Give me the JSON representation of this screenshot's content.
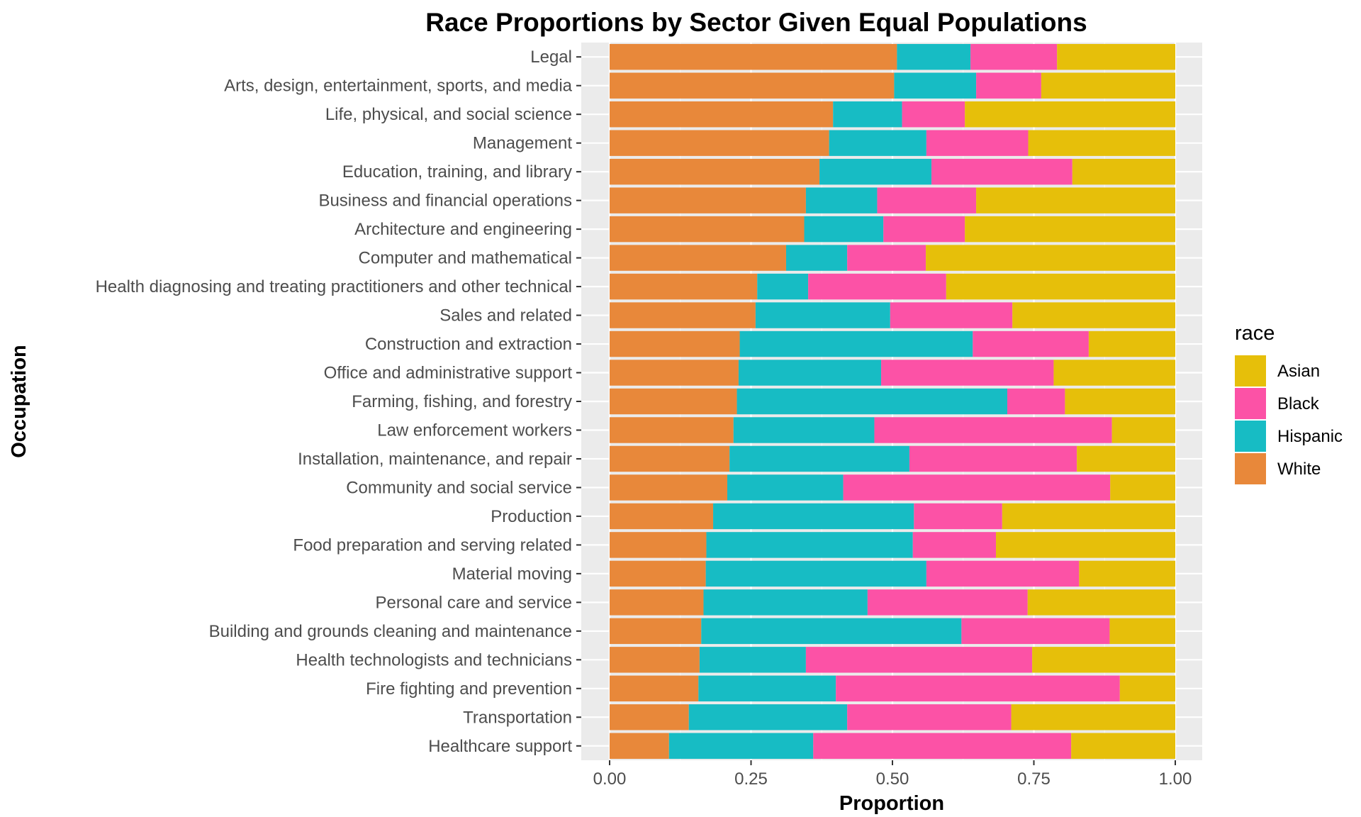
{
  "chart_data": {
    "type": "bar",
    "orientation": "horizontal",
    "stacked": true,
    "title": "Race Proportions by Sector Given Equal Populations",
    "xlabel": "Proportion",
    "ylabel": "Occupation",
    "xlim": [
      0,
      1
    ],
    "x_ticks": [
      "0.00",
      "0.25",
      "0.50",
      "0.75",
      "1.00"
    ],
    "x_tick_values": [
      0,
      0.25,
      0.5,
      0.75,
      1.0
    ],
    "grid": true,
    "legend_title": "race",
    "legend_position": "right",
    "categories": [
      "Legal",
      "Arts, design, entertainment, sports, and media",
      "Life, physical, and social science",
      "Management",
      "Education, training, and library",
      "Business and financial operations",
      "Architecture and engineering",
      "Computer and mathematical",
      "Health diagnosing and treating practitioners and other technical",
      "Sales and related",
      "Construction and extraction",
      "Office and administrative support",
      "Farming, fishing, and forestry",
      "Law enforcement workers",
      "Installation, maintenance, and repair",
      "Community and social service",
      "Production",
      "Food preparation and serving related",
      "Material moving",
      "Personal care and service",
      "Building and grounds cleaning and maintenance",
      "Health technologists and technicians",
      "Fire fighting and prevention",
      "Transportation",
      "Healthcare support"
    ],
    "series": [
      {
        "name": "White",
        "color": "#E8883A",
        "values": [
          0.508,
          0.503,
          0.395,
          0.388,
          0.371,
          0.347,
          0.344,
          0.312,
          0.261,
          0.258,
          0.23,
          0.228,
          0.225,
          0.219,
          0.212,
          0.208,
          0.183,
          0.171,
          0.17,
          0.166,
          0.162,
          0.159,
          0.157,
          0.14,
          0.105
        ]
      },
      {
        "name": "Hispanic",
        "color": "#17BCC4",
        "values": [
          0.13,
          0.145,
          0.122,
          0.172,
          0.198,
          0.126,
          0.14,
          0.108,
          0.09,
          0.238,
          0.412,
          0.252,
          0.478,
          0.249,
          0.318,
          0.205,
          0.355,
          0.365,
          0.39,
          0.29,
          0.46,
          0.188,
          0.243,
          0.28,
          0.255
        ]
      },
      {
        "name": "Black",
        "color": "#FC52A6",
        "values": [
          0.153,
          0.115,
          0.111,
          0.18,
          0.249,
          0.175,
          0.144,
          0.139,
          0.244,
          0.216,
          0.205,
          0.305,
          0.102,
          0.42,
          0.296,
          0.472,
          0.156,
          0.147,
          0.27,
          0.283,
          0.262,
          0.4,
          0.502,
          0.29,
          0.456
        ]
      },
      {
        "name": "Asian",
        "color": "#E6BF0A",
        "values": [
          0.209,
          0.237,
          0.372,
          0.26,
          0.182,
          0.352,
          0.372,
          0.441,
          0.405,
          0.288,
          0.153,
          0.215,
          0.195,
          0.112,
          0.174,
          0.115,
          0.306,
          0.317,
          0.17,
          0.261,
          0.116,
          0.253,
          0.098,
          0.29,
          0.184
        ]
      }
    ],
    "legend_order": [
      "Asian",
      "Black",
      "Hispanic",
      "White"
    ]
  }
}
